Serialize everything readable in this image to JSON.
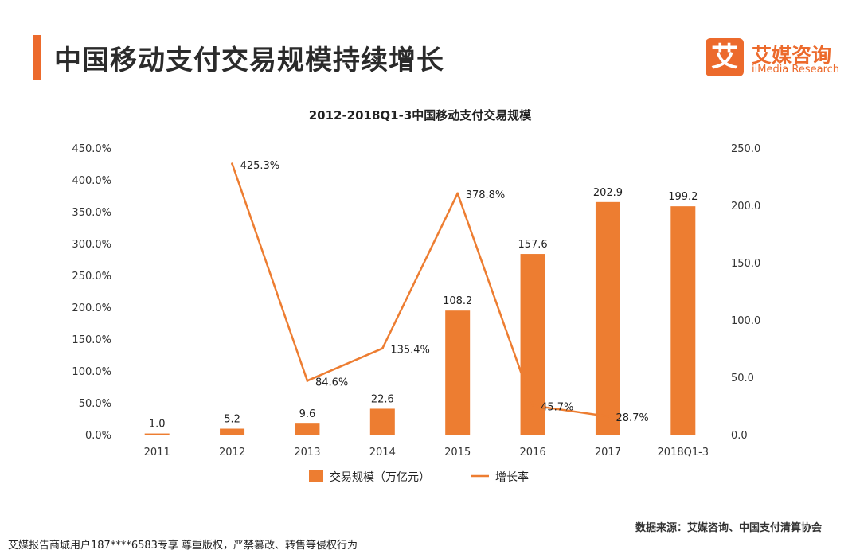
{
  "header": {
    "title": "中国移动支付交易规模持续增长",
    "accent_color": "#ec6a2c"
  },
  "logo": {
    "mark": "艾",
    "name_cn": "艾媒咨询",
    "name_en": "iiMedia Research",
    "color": "#ec6a2c"
  },
  "chart_data": {
    "type": "bar",
    "title": "2012-2018Q1-3中国移动支付交易规模",
    "categories": [
      "2011",
      "2012",
      "2013",
      "2014",
      "2015",
      "2016",
      "2017",
      "2018Q1-3"
    ],
    "series": [
      {
        "name": "交易规模（万亿元）",
        "type": "bar",
        "axis": "right",
        "color": "#ed7d31",
        "values": [
          1.0,
          5.2,
          9.6,
          22.6,
          108.2,
          157.6,
          202.9,
          199.2
        ],
        "labels": [
          "1.0",
          "5.2",
          "9.6",
          "22.6",
          "108.2",
          "157.6",
          "202.9",
          "199.2"
        ]
      },
      {
        "name": "增长率",
        "type": "line",
        "axis": "left",
        "color": "#ed7d31",
        "values": [
          null,
          425.3,
          84.6,
          135.4,
          378.8,
          45.7,
          28.7,
          null
        ],
        "labels": [
          "",
          "425.3%",
          "84.6%",
          "135.4%",
          "378.8%",
          "45.7%",
          "28.7%",
          ""
        ]
      }
    ],
    "y_left": {
      "ylim": [
        0,
        450
      ],
      "ticks": [
        "0.0%",
        "50.0%",
        "100.0%",
        "150.0%",
        "200.0%",
        "250.0%",
        "300.0%",
        "350.0%",
        "400.0%",
        "450.0%"
      ]
    },
    "y_right": {
      "ylim": [
        0,
        250
      ],
      "ticks": [
        "0.0",
        "50.0",
        "100.0",
        "150.0",
        "200.0",
        "250.0"
      ]
    },
    "grid": false,
    "legend": "bottom"
  },
  "source_note": "数据来源：艾媒咨询、中国支付清算协会",
  "footer_note": "艾媒报告商城用户187****6583专享 尊重版权，严禁篡改、转售等侵权行为"
}
